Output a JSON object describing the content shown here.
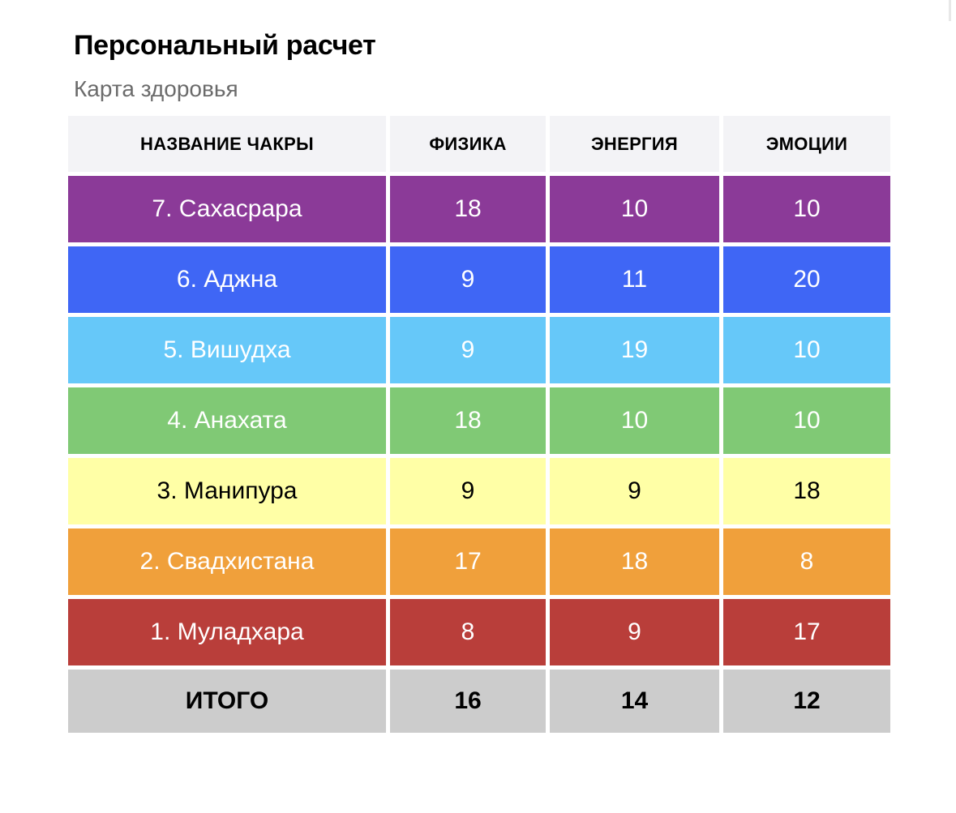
{
  "title": "Персональный расчет",
  "subtitle": "Карта здоровья",
  "table": {
    "headers": [
      "НАЗВАНИЕ ЧАКРЫ",
      "ФИЗИКА",
      "ЭНЕРГИЯ",
      "ЭМОЦИИ"
    ],
    "rows": [
      {
        "name": "7. Сахасрара",
        "physics": "18",
        "energy": "10",
        "emotions": "10",
        "color": "#8b3a98",
        "text_color": "#ffffff"
      },
      {
        "name": "6. Аджна",
        "physics": "9",
        "energy": "11",
        "emotions": "20",
        "color": "#3f66f5",
        "text_color": "#ffffff"
      },
      {
        "name": "5. Вишудха",
        "physics": "9",
        "energy": "19",
        "emotions": "10",
        "color": "#66c8f9",
        "text_color": "#ffffff"
      },
      {
        "name": "4. Анахата",
        "physics": "18",
        "energy": "10",
        "emotions": "10",
        "color": "#80c975",
        "text_color": "#ffffff"
      },
      {
        "name": "3. Манипура",
        "physics": "9",
        "energy": "9",
        "emotions": "18",
        "color": "#ffffa6",
        "text_color": "#000000"
      },
      {
        "name": "2. Свадхистана",
        "physics": "17",
        "energy": "18",
        "emotions": "8",
        "color": "#f0a03b",
        "text_color": "#ffffff"
      },
      {
        "name": "1. Муладхара",
        "physics": "8",
        "energy": "9",
        "emotions": "17",
        "color": "#b93e3a",
        "text_color": "#ffffff"
      }
    ],
    "total": {
      "label": "ИТОГО",
      "physics": "16",
      "energy": "14",
      "emotions": "12",
      "color": "#cccccc"
    }
  }
}
